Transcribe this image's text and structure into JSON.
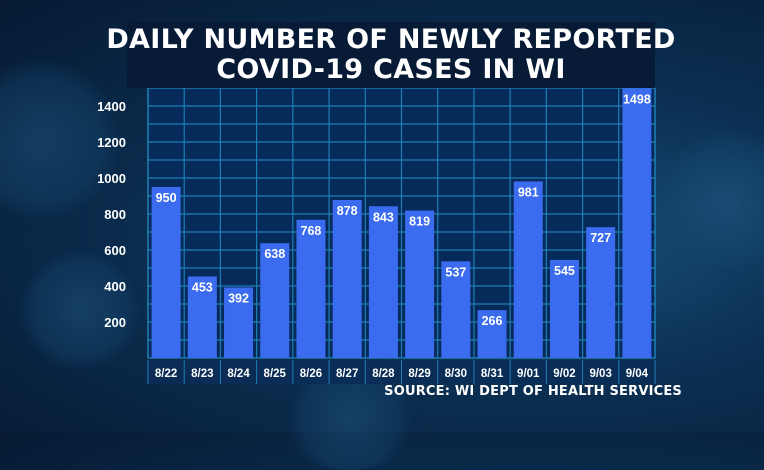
{
  "title_lines": [
    "DAILY NUMBER OF NEWLY REPORTED",
    "COVID-19 CASES IN WI"
  ],
  "source": "SOURCE: WI DEPT OF HEALTH SERVICES",
  "colors": {
    "bar": "#3b6cf0",
    "grid": "#1e7fb5",
    "plot_bg": "#062a5a",
    "text": "#ffffff"
  },
  "chart_data": {
    "type": "bar",
    "title": "DAILY NUMBER OF NEWLY REPORTED COVID-19 CASES IN WI",
    "xlabel": "",
    "ylabel": "",
    "categories": [
      "8/22",
      "8/23",
      "8/24",
      "8/25",
      "8/26",
      "8/27",
      "8/28",
      "8/29",
      "8/30",
      "8/31",
      "9/01",
      "9/02",
      "9/03",
      "9/04"
    ],
    "values": [
      950,
      453,
      392,
      638,
      768,
      878,
      843,
      819,
      537,
      266,
      981,
      545,
      727,
      1498
    ],
    "data_labels": [
      "950",
      "453",
      "392",
      "638",
      "768",
      "878",
      "843",
      "819",
      "537",
      "266",
      "981",
      "545",
      "727",
      "1498"
    ],
    "yticks": [
      200,
      400,
      600,
      800,
      1000,
      1200,
      1400
    ],
    "ytick_labels": [
      "200",
      "400",
      "600",
      "800",
      "1000",
      "1200",
      "1400"
    ],
    "ylim": [
      0,
      1500
    ],
    "grid": true
  }
}
